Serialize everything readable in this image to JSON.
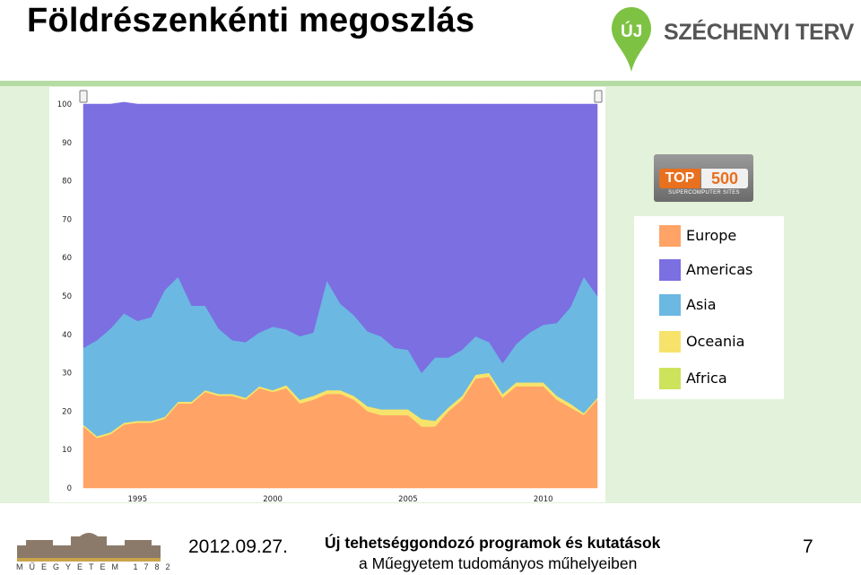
{
  "header": {
    "title": "Földrészenkénti megoszlás",
    "logo": {
      "uj": "ÚJ",
      "name": "SZÉCHENYI TERV",
      "color": "#7ec243"
    }
  },
  "top500_logo": {
    "top": "TOP",
    "num": "500",
    "sub": "SUPERCOMPUTER SITES",
    "icon": "top500-logo"
  },
  "chart_data": {
    "type": "area",
    "stacked": true,
    "x": [
      1993,
      1993.5,
      1994,
      1994.5,
      1995,
      1995.5,
      1996,
      1996.5,
      1997,
      1997.5,
      1998,
      1998.5,
      1999,
      1999.5,
      2000,
      2000.5,
      2001,
      2001.5,
      2002,
      2002.5,
      2003,
      2003.5,
      2004,
      2004.5,
      2005,
      2005.5,
      2006,
      2006.5,
      2007,
      2007.5,
      2008,
      2008.5,
      2009,
      2009.5,
      2010,
      2010.5,
      2011,
      2011.5,
      2012
    ],
    "xticks": [
      1995,
      2000,
      2005,
      2010
    ],
    "ylim": [
      0,
      100
    ],
    "yticks": [
      0,
      10,
      20,
      30,
      40,
      50,
      60,
      70,
      80,
      90,
      100
    ],
    "series": [
      {
        "name": "Europe",
        "color": "#ffa366",
        "values": [
          16,
          13,
          14,
          16.5,
          17,
          17,
          18,
          22,
          22,
          25,
          24,
          24,
          23,
          26,
          25,
          26,
          22,
          23,
          24.5,
          24.5,
          23,
          20,
          19,
          19,
          19,
          16,
          16,
          20,
          23,
          28.5,
          29,
          23.5,
          26.5,
          26.5,
          26.5,
          23,
          21,
          19,
          23
        ]
      },
      {
        "name": "Oceania",
        "color": "#f7e36b",
        "values": [
          0.5,
          0.5,
          0.5,
          0.5,
          0.5,
          0.5,
          0.5,
          0.5,
          0.5,
          0.5,
          0.5,
          0.5,
          0.5,
          0.5,
          0.5,
          0.8,
          1,
          1,
          1,
          1,
          1,
          1.3,
          1.5,
          1.5,
          1.5,
          2,
          1.5,
          1,
          1,
          1,
          1,
          1,
          1,
          1,
          1,
          1,
          1,
          0.5,
          0.5
        ]
      },
      {
        "name": "Africa",
        "color": "#cde35c",
        "values": [
          0,
          0,
          0,
          0,
          0,
          0,
          0,
          0,
          0,
          0,
          0,
          0,
          0,
          0,
          0,
          0,
          0,
          0,
          0,
          0,
          0,
          0,
          0,
          0,
          0,
          0,
          0,
          0,
          0,
          0,
          0,
          0,
          0,
          0,
          0,
          0,
          0,
          0,
          0
        ]
      },
      {
        "name": "Asia",
        "color": "#6bb8e3",
        "values": [
          20,
          25,
          27,
          28.5,
          26,
          27,
          33,
          32.5,
          25,
          22,
          17,
          14,
          14.5,
          14,
          16.5,
          14.5,
          16.5,
          16.5,
          28.5,
          22.5,
          21,
          19.5,
          19,
          16,
          15.5,
          12,
          16.5,
          13,
          12,
          10,
          8,
          8,
          10,
          13,
          15,
          19,
          25,
          35.5,
          26.5
        ]
      },
      {
        "name": "Americas",
        "color": "#7b6fe1",
        "values": [
          63.5,
          61.5,
          58.5,
          55,
          56.5,
          55.5,
          48.5,
          45,
          52.5,
          52.5,
          58.5,
          61.5,
          62,
          59.5,
          58,
          58.7,
          60.5,
          59.5,
          46,
          52,
          55,
          59.2,
          60.5,
          63.5,
          64,
          70,
          66,
          66,
          64,
          60.5,
          62,
          67.5,
          62.5,
          59.5,
          57.5,
          57,
          53,
          45,
          50
        ]
      }
    ]
  },
  "footer": {
    "date": "2012.09.27.",
    "line1": "Új tehetséggondozó programok és kutatások",
    "line2": "a Műegyetem tudományos műhelyeiben",
    "page": "7",
    "university": "MŰEGYETEM 1782"
  }
}
